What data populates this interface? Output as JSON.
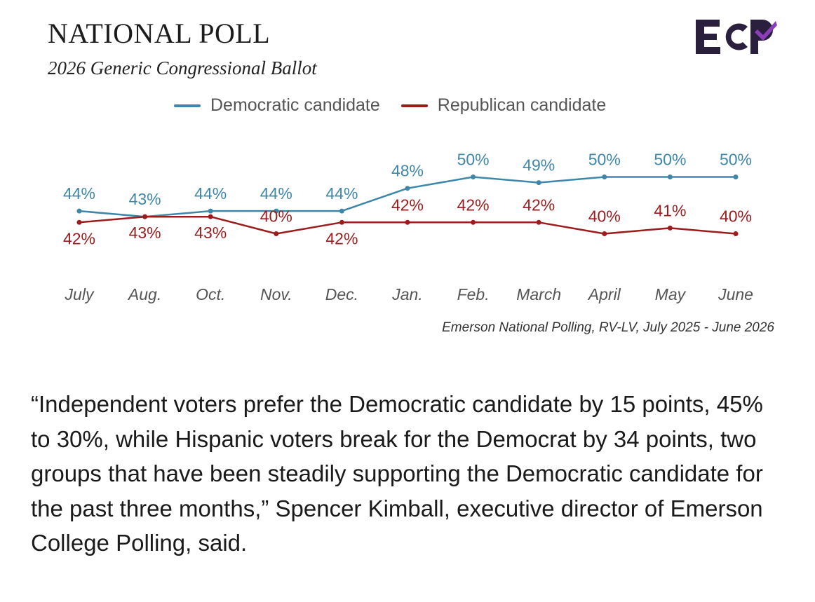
{
  "header": {
    "title": "NATIONAL POLL",
    "subtitle": "2026 Generic Congressional Ballot",
    "logo_text": "ECP"
  },
  "colors": {
    "democratic": "#3e87ab",
    "republican": "#9b1c1c",
    "logo": "#2a1f3d"
  },
  "chart_data": {
    "type": "line",
    "x": [
      "July",
      "Aug.",
      "Oct.",
      "Nov.",
      "Dec.",
      "Jan.",
      "Feb.",
      "March",
      "April",
      "May",
      "June"
    ],
    "series": [
      {
        "name": "Democratic candidate",
        "values": [
          44,
          43,
          44,
          44,
          44,
          48,
          50,
          49,
          50,
          50,
          50
        ],
        "color": "#3e87ab"
      },
      {
        "name": "Republican candidate",
        "values": [
          42,
          43,
          43,
          40,
          42,
          42,
          42,
          42,
          40,
          41,
          40
        ],
        "color": "#9b1c1c"
      }
    ],
    "value_suffix": "%",
    "ylim": [
      36,
      54
    ],
    "legend": "top",
    "grid": false
  },
  "source": "Emerson National Polling, RV-LV, July 2025 - June 2026",
  "quote": "“Independent voters prefer the Democratic candidate by 15 points, 45% to 30%, while Hispanic voters break for the Democrat by 34 points, two groups that have been steadily supporting the Democratic candidate for the past three months,” Spencer Kimball, executive director of Emerson College Polling, said."
}
